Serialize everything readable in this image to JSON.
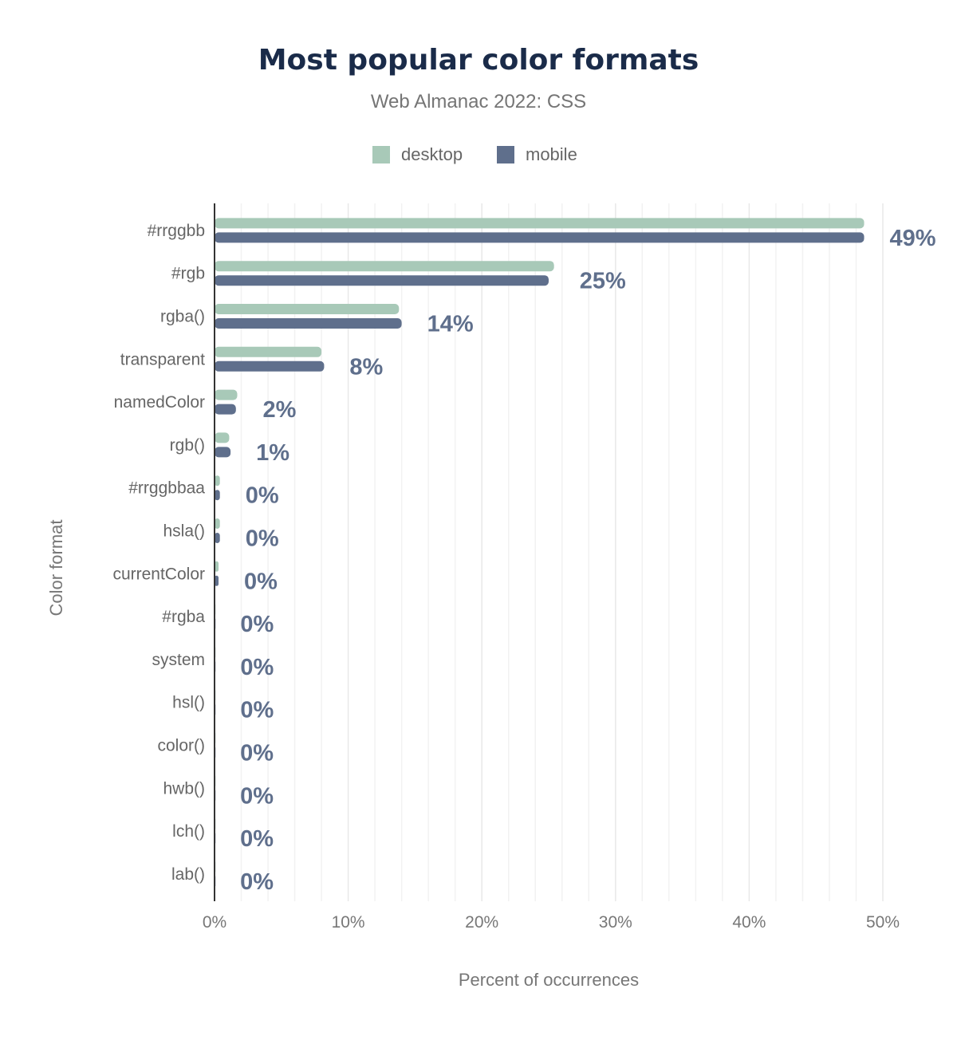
{
  "chart_data": {
    "type": "bar",
    "orientation": "horizontal",
    "title": "Most popular color formats",
    "subtitle": "Web Almanac 2022: CSS",
    "xlabel": "Percent of occurrences",
    "ylabel": "Color format",
    "xlim": [
      0,
      50
    ],
    "xticks": [
      "0%",
      "10%",
      "20%",
      "30%",
      "40%",
      "50%"
    ],
    "grid": true,
    "legend_position": "top",
    "categories": [
      "#rrggbb",
      "#rgb",
      "rgba()",
      "transparent",
      "namedColor",
      "rgb()",
      "#rrggbbaa",
      "hsla()",
      "currentColor",
      "#rgba",
      "system",
      "hsl()",
      "color()",
      "hwb()",
      "lch()",
      "lab()"
    ],
    "series": [
      {
        "name": "desktop",
        "color": "#a8c9b8",
        "values": [
          48.6,
          25.4,
          13.8,
          8.0,
          1.7,
          1.1,
          0.4,
          0.4,
          0.3,
          0.02,
          0.02,
          0.02,
          0.01,
          0.01,
          0.01,
          0.01
        ]
      },
      {
        "name": "mobile",
        "color": "#5f6f8c",
        "values": [
          48.6,
          25.0,
          14.0,
          8.2,
          1.6,
          1.2,
          0.4,
          0.4,
          0.3,
          0.02,
          0.02,
          0.02,
          0.01,
          0.01,
          0.01,
          0.01
        ]
      }
    ],
    "data_labels": [
      "49%",
      "25%",
      "14%",
      "8%",
      "2%",
      "1%",
      "0%",
      "0%",
      "0%",
      "0%",
      "0%",
      "0%",
      "0%",
      "0%",
      "0%",
      "0%"
    ]
  }
}
